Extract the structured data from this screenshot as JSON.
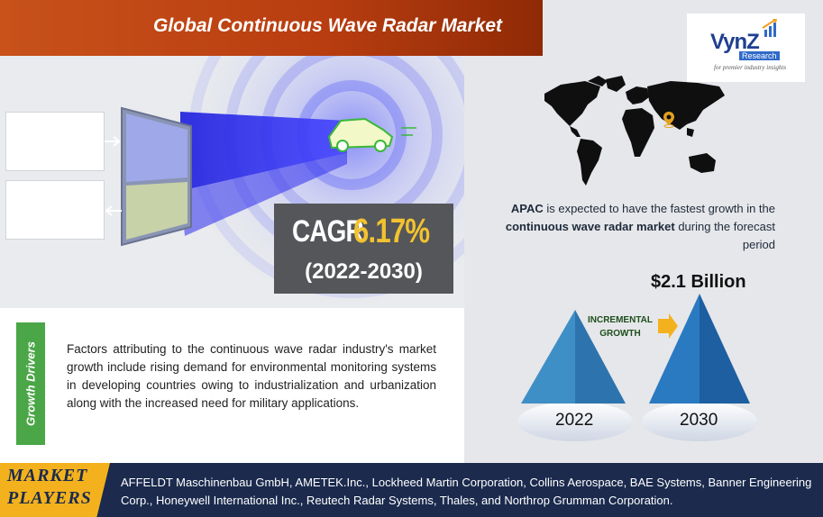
{
  "header": {
    "title": "Global Continuous Wave Radar Market"
  },
  "logo": {
    "main": "VynZ",
    "sub": "Research",
    "tagline": "for premier industry insights",
    "icon": "arrow-up-icon"
  },
  "cagr": {
    "label": "CAGR",
    "value": "6.17%",
    "period": "(2022-2030)"
  },
  "region": {
    "region_name": "APAC",
    "text_1": " is expected to have the fastest growth in the ",
    "market_name": "continuous wave radar market",
    "text_2": " during the forecast period"
  },
  "growth_chart": {
    "value_label": "$2.1 Billion",
    "incremental_line1": "INCREMENTAL",
    "incremental_line2": "GROWTH",
    "start_year": "2022",
    "end_year": "2030",
    "colors": {
      "pyramid_light": "#3f8fc7",
      "pyramid_dark": "#1f5f9f",
      "arrow": "#f3b21d"
    }
  },
  "growth_drivers": {
    "heading": "Growth Drivers",
    "text": "Factors attributing to the continuous wave radar industry's market growth include rising demand for environmental monitoring systems in developing countries owing to industrialization and urbanization along with the increased need for military applications."
  },
  "market_players": {
    "label_line1": "MARKET",
    "label_line2": "PLAYERS",
    "text": "AFFELDT Maschinenbau GmbH, AMETEK.Inc., Lockheed Martin Corporation, Collins Aerospace, BAE Systems, Banner Engineering Corp., Honeywell International Inc., Reutech Radar Systems, Thales, and Northrop Grumman Corporation."
  },
  "colors": {
    "title_banner": "#c8521a",
    "cagr_value": "#f2c230",
    "growth_drivers_bar": "#4aa646",
    "footer_bg": "#1b2a4d",
    "map_pin": "#e3a020"
  }
}
